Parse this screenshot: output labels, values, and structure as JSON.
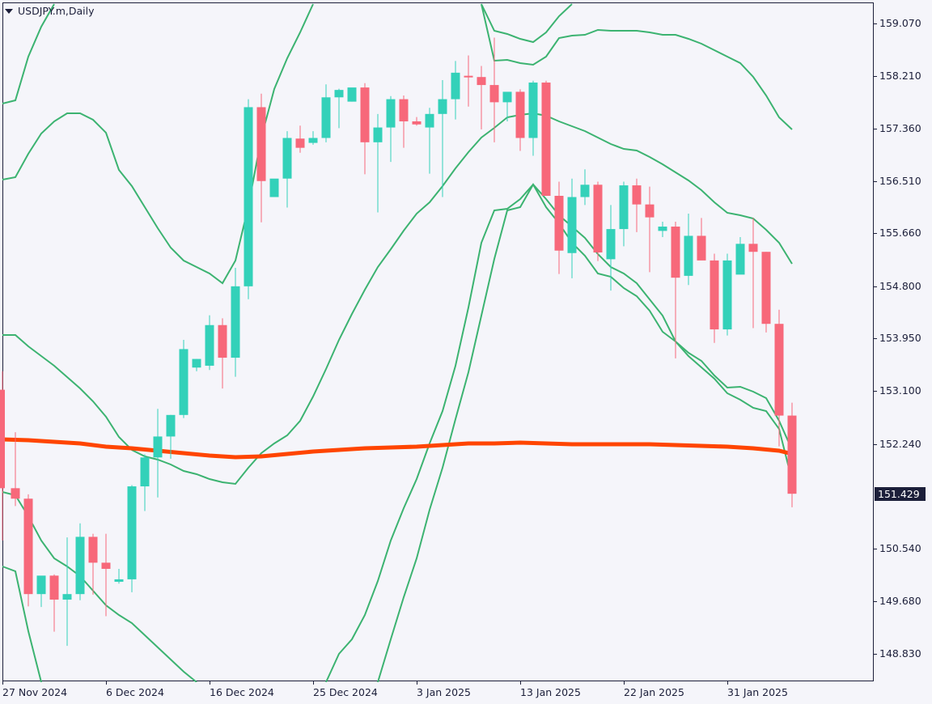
{
  "header": {
    "symbol_label": "USDJPY.m,Daily",
    "menu_icon": "triangle-down-icon"
  },
  "colors": {
    "bull": "#33d1b9",
    "bear": "#f7687a",
    "bands": "#3cb371",
    "ma": "#ff4500",
    "axis": "#1c1f3a",
    "background": "#f5f5fa"
  },
  "price_axis": {
    "labels": [
      "159.070",
      "158.210",
      "157.360",
      "156.510",
      "155.660",
      "154.800",
      "153.950",
      "153.100",
      "152.240",
      "150.540",
      "149.680",
      "148.830"
    ],
    "current_price": "151.429"
  },
  "time_axis": {
    "labels": [
      "27 Nov 2024",
      "6 Dec 2024",
      "16 Dec 2024",
      "25 Dec 2024",
      "3 Jan 2025",
      "13 Jan 2025",
      "22 Jan 2025",
      "31 Jan 2025"
    ]
  },
  "chart_data": {
    "type": "candlestick",
    "title": "USDJPY.m,Daily",
    "xlabel": "",
    "ylabel": "",
    "ylim": [
      148.45,
      159.45
    ],
    "grid": false,
    "y_ticks": [
      159.07,
      158.21,
      157.36,
      156.51,
      155.66,
      154.8,
      153.95,
      153.1,
      152.24,
      150.54,
      149.68,
      148.83
    ],
    "x_tick_labels": [
      "27 Nov 2024",
      "6 Dec 2024",
      "16 Dec 2024",
      "25 Dec 2024",
      "3 Jan 2025",
      "13 Jan 2025",
      "22 Jan 2025",
      "31 Jan 2025"
    ],
    "last_price": 151.429,
    "candles": [
      {
        "o": 153.12,
        "h": 153.42,
        "l": 150.67,
        "c": 151.52
      },
      {
        "o": 151.52,
        "h": 152.43,
        "l": 151.23,
        "c": 151.35
      },
      {
        "o": 151.35,
        "h": 151.42,
        "l": 149.6,
        "c": 149.8
      },
      {
        "o": 149.8,
        "h": 150.0,
        "l": 149.59,
        "c": 150.1
      },
      {
        "o": 150.1,
        "h": 150.12,
        "l": 149.19,
        "c": 149.71
      },
      {
        "o": 149.71,
        "h": 150.72,
        "l": 148.96,
        "c": 149.8
      },
      {
        "o": 149.8,
        "h": 150.95,
        "l": 149.7,
        "c": 150.73
      },
      {
        "o": 150.73,
        "h": 150.78,
        "l": 149.79,
        "c": 150.31
      },
      {
        "o": 150.31,
        "h": 150.78,
        "l": 149.44,
        "c": 150.21
      },
      {
        "o": 150.0,
        "h": 150.21,
        "l": 149.97,
        "c": 150.04
      },
      {
        "o": 150.04,
        "h": 151.57,
        "l": 149.83,
        "c": 151.55
      },
      {
        "o": 151.55,
        "h": 152.07,
        "l": 151.15,
        "c": 152.02
      },
      {
        "o": 152.02,
        "h": 152.81,
        "l": 151.37,
        "c": 152.36
      },
      {
        "o": 152.36,
        "h": 152.71,
        "l": 152.0,
        "c": 152.71
      },
      {
        "o": 152.71,
        "h": 153.93,
        "l": 152.66,
        "c": 153.78
      },
      {
        "o": 153.48,
        "h": 153.62,
        "l": 153.42,
        "c": 153.62
      },
      {
        "o": 153.51,
        "h": 154.33,
        "l": 153.44,
        "c": 154.17
      },
      {
        "o": 154.17,
        "h": 154.28,
        "l": 153.14,
        "c": 153.64
      },
      {
        "o": 153.64,
        "h": 155.1,
        "l": 153.33,
        "c": 154.8
      },
      {
        "o": 154.8,
        "h": 157.84,
        "l": 154.59,
        "c": 157.71
      },
      {
        "o": 157.71,
        "h": 157.93,
        "l": 155.84,
        "c": 156.51
      },
      {
        "o": 156.25,
        "h": 156.51,
        "l": 156.25,
        "c": 156.55
      },
      {
        "o": 156.55,
        "h": 157.32,
        "l": 156.08,
        "c": 157.21
      },
      {
        "o": 157.2,
        "h": 157.41,
        "l": 156.97,
        "c": 157.05
      },
      {
        "o": 157.13,
        "h": 157.32,
        "l": 157.1,
        "c": 157.21
      },
      {
        "o": 157.21,
        "h": 158.08,
        "l": 157.14,
        "c": 157.87
      },
      {
        "o": 157.87,
        "h": 158.01,
        "l": 157.37,
        "c": 157.99
      },
      {
        "o": 157.8,
        "h": 158.01,
        "l": 157.8,
        "c": 158.03
      },
      {
        "o": 158.03,
        "h": 158.1,
        "l": 156.62,
        "c": 157.14
      },
      {
        "o": 157.14,
        "h": 157.6,
        "l": 156.0,
        "c": 157.38
      },
      {
        "o": 157.38,
        "h": 157.89,
        "l": 156.82,
        "c": 157.84
      },
      {
        "o": 157.84,
        "h": 157.9,
        "l": 157.05,
        "c": 157.48
      },
      {
        "o": 157.48,
        "h": 157.55,
        "l": 157.41,
        "c": 157.43
      },
      {
        "o": 157.38,
        "h": 157.7,
        "l": 156.63,
        "c": 157.6
      },
      {
        "o": 157.6,
        "h": 158.15,
        "l": 156.25,
        "c": 157.84
      },
      {
        "o": 157.84,
        "h": 158.46,
        "l": 157.51,
        "c": 158.27
      },
      {
        "o": 158.22,
        "h": 158.55,
        "l": 157.72,
        "c": 158.2
      },
      {
        "o": 158.2,
        "h": 158.38,
        "l": 157.35,
        "c": 158.07
      },
      {
        "o": 158.07,
        "h": 158.84,
        "l": 157.14,
        "c": 157.79
      },
      {
        "o": 157.79,
        "h": 157.96,
        "l": 157.48,
        "c": 157.96
      },
      {
        "o": 157.96,
        "h": 158.0,
        "l": 157.0,
        "c": 157.21
      },
      {
        "o": 157.21,
        "h": 158.14,
        "l": 156.92,
        "c": 158.11
      },
      {
        "o": 158.11,
        "h": 158.14,
        "l": 156.31,
        "c": 156.27
      },
      {
        "o": 156.27,
        "h": 156.5,
        "l": 155.0,
        "c": 155.38
      },
      {
        "o": 155.34,
        "h": 156.55,
        "l": 154.93,
        "c": 156.25
      },
      {
        "o": 156.25,
        "h": 156.7,
        "l": 156.12,
        "c": 156.45
      },
      {
        "o": 156.45,
        "h": 156.5,
        "l": 155.21,
        "c": 155.35
      },
      {
        "o": 155.24,
        "h": 156.12,
        "l": 154.73,
        "c": 155.73
      },
      {
        "o": 155.73,
        "h": 156.5,
        "l": 155.45,
        "c": 156.44
      },
      {
        "o": 156.44,
        "h": 156.55,
        "l": 155.68,
        "c": 156.13
      },
      {
        "o": 156.13,
        "h": 156.42,
        "l": 155.03,
        "c": 155.92
      },
      {
        "o": 155.7,
        "h": 155.85,
        "l": 155.6,
        "c": 155.77
      },
      {
        "o": 155.77,
        "h": 155.85,
        "l": 153.63,
        "c": 154.94
      },
      {
        "o": 154.97,
        "h": 155.98,
        "l": 154.82,
        "c": 155.62
      },
      {
        "o": 155.62,
        "h": 155.91,
        "l": 155.25,
        "c": 155.22
      },
      {
        "o": 155.22,
        "h": 155.33,
        "l": 153.88,
        "c": 154.1
      },
      {
        "o": 154.1,
        "h": 155.33,
        "l": 154.0,
        "c": 155.22
      },
      {
        "o": 154.99,
        "h": 155.6,
        "l": 155.07,
        "c": 155.49
      },
      {
        "o": 155.49,
        "h": 155.91,
        "l": 154.12,
        "c": 155.36
      },
      {
        "o": 155.36,
        "h": 155.36,
        "l": 154.05,
        "c": 154.19
      },
      {
        "o": 154.19,
        "h": 154.42,
        "l": 152.2,
        "c": 152.7
      },
      {
        "o": 152.7,
        "h": 152.91,
        "l": 151.21,
        "c": 151.43
      }
    ],
    "series": [
      {
        "name": "MA (orange)",
        "color": "#ff4500",
        "values_y_px": "approx flat near 152.35 -> 152.15"
      },
      {
        "name": "Bollinger/Envelope bands (green)",
        "color": "#3cb371",
        "count": 6
      }
    ]
  }
}
